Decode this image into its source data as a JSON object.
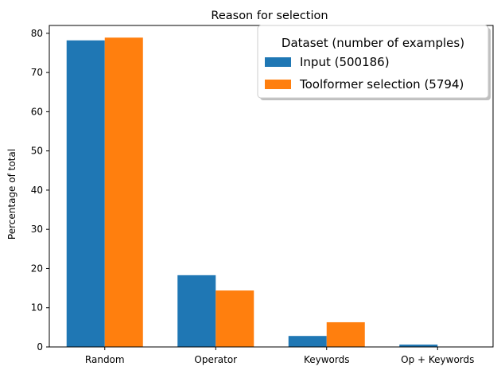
{
  "chart_data": {
    "type": "bar",
    "title": "Reason for selection",
    "xlabel": "",
    "ylabel": "Percentage of total",
    "ylim": [
      0,
      82
    ],
    "yticks": [
      0,
      10,
      20,
      30,
      40,
      50,
      60,
      70,
      80
    ],
    "categories": [
      "Random",
      "Operator",
      "Keywords",
      "Op + Keywords"
    ],
    "series": [
      {
        "name": "Input (500186)",
        "color": "#1f77b4",
        "values": [
          78.2,
          18.3,
          2.8,
          0.6
        ]
      },
      {
        "name": "Toolformer selection (5794)",
        "color": "#ff7f0e",
        "values": [
          78.9,
          14.4,
          6.3,
          0.0
        ]
      }
    ],
    "legend": {
      "title": "Dataset (number of examples)",
      "placement": "top-right"
    },
    "grid": false
  }
}
